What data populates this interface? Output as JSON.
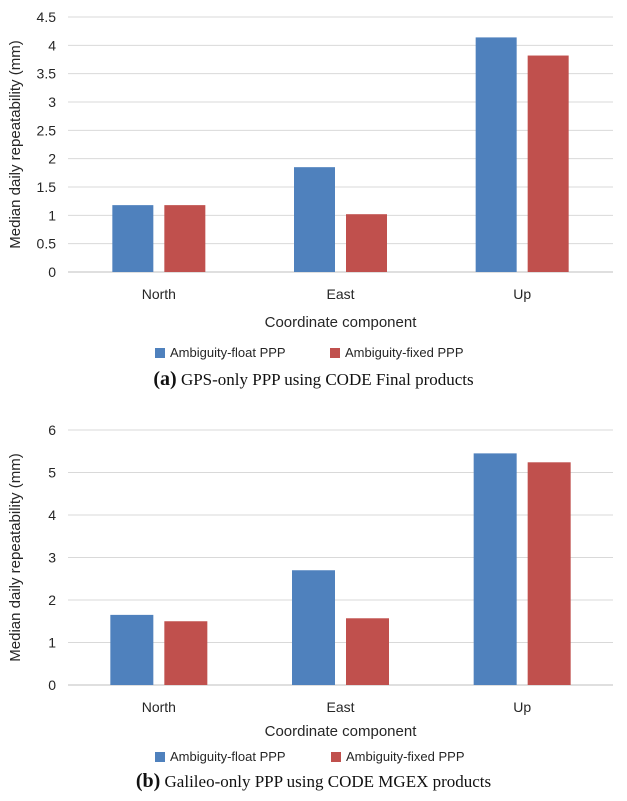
{
  "chart_data": [
    {
      "type": "bar",
      "categories": [
        "North",
        "East",
        "Up"
      ],
      "series": [
        {
          "name": "Ambiguity-float PPP",
          "values": [
            1.18,
            1.85,
            4.14
          ],
          "color": "#4F81BD"
        },
        {
          "name": "Ambiguity-fixed PPP",
          "values": [
            1.18,
            1.02,
            3.82
          ],
          "color": "#C0504D"
        }
      ],
      "xlabel": "Coordinate component",
      "ylabel": "Median daily repeatability (mm)",
      "ylim": [
        0,
        4.5
      ],
      "yticks": [
        "0",
        "0.5",
        "1",
        "1.5",
        "2",
        "2.5",
        "3",
        "3.5",
        "4",
        "4.5"
      ],
      "grid": true,
      "legend": "bottom",
      "caption_label": "(a)",
      "caption_text": "GPS-only PPP using CODE Final products"
    },
    {
      "type": "bar",
      "categories": [
        "North",
        "East",
        "Up"
      ],
      "series": [
        {
          "name": "Ambiguity-float PPP",
          "values": [
            1.65,
            2.7,
            5.45
          ],
          "color": "#4F81BD"
        },
        {
          "name": "Ambiguity-fixed PPP",
          "values": [
            1.5,
            1.57,
            5.24
          ],
          "color": "#C0504D"
        }
      ],
      "xlabel": "Coordinate component",
      "ylabel": "Median daily repeatability (mm)",
      "ylim": [
        0,
        6
      ],
      "yticks": [
        "0",
        "1",
        "2",
        "3",
        "4",
        "5",
        "6"
      ],
      "grid": true,
      "legend": "bottom",
      "caption_label": "(b)",
      "caption_text": "Galileo-only PPP using CODE MGEX products"
    }
  ]
}
